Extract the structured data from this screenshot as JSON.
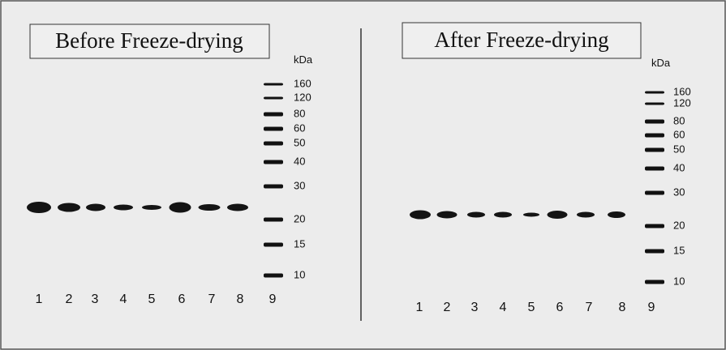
{
  "panels": [
    {
      "title": "Before Freeze-drying",
      "unit": "kDa",
      "markers": [
        "160",
        "120",
        "80",
        "60",
        "50",
        "40",
        "30",
        "20",
        "15",
        "10"
      ],
      "lanes": [
        "1",
        "2",
        "3",
        "4",
        "5",
        "6",
        "7",
        "8",
        "9"
      ]
    },
    {
      "title": "After Freeze-drying",
      "unit": "kDa",
      "markers": [
        "160",
        "120",
        "80",
        "60",
        "50",
        "40",
        "30",
        "20",
        "15",
        "10"
      ],
      "lanes": [
        "1",
        "2",
        "3",
        "4",
        "5",
        "6",
        "7",
        "8",
        "9"
      ]
    }
  ]
}
